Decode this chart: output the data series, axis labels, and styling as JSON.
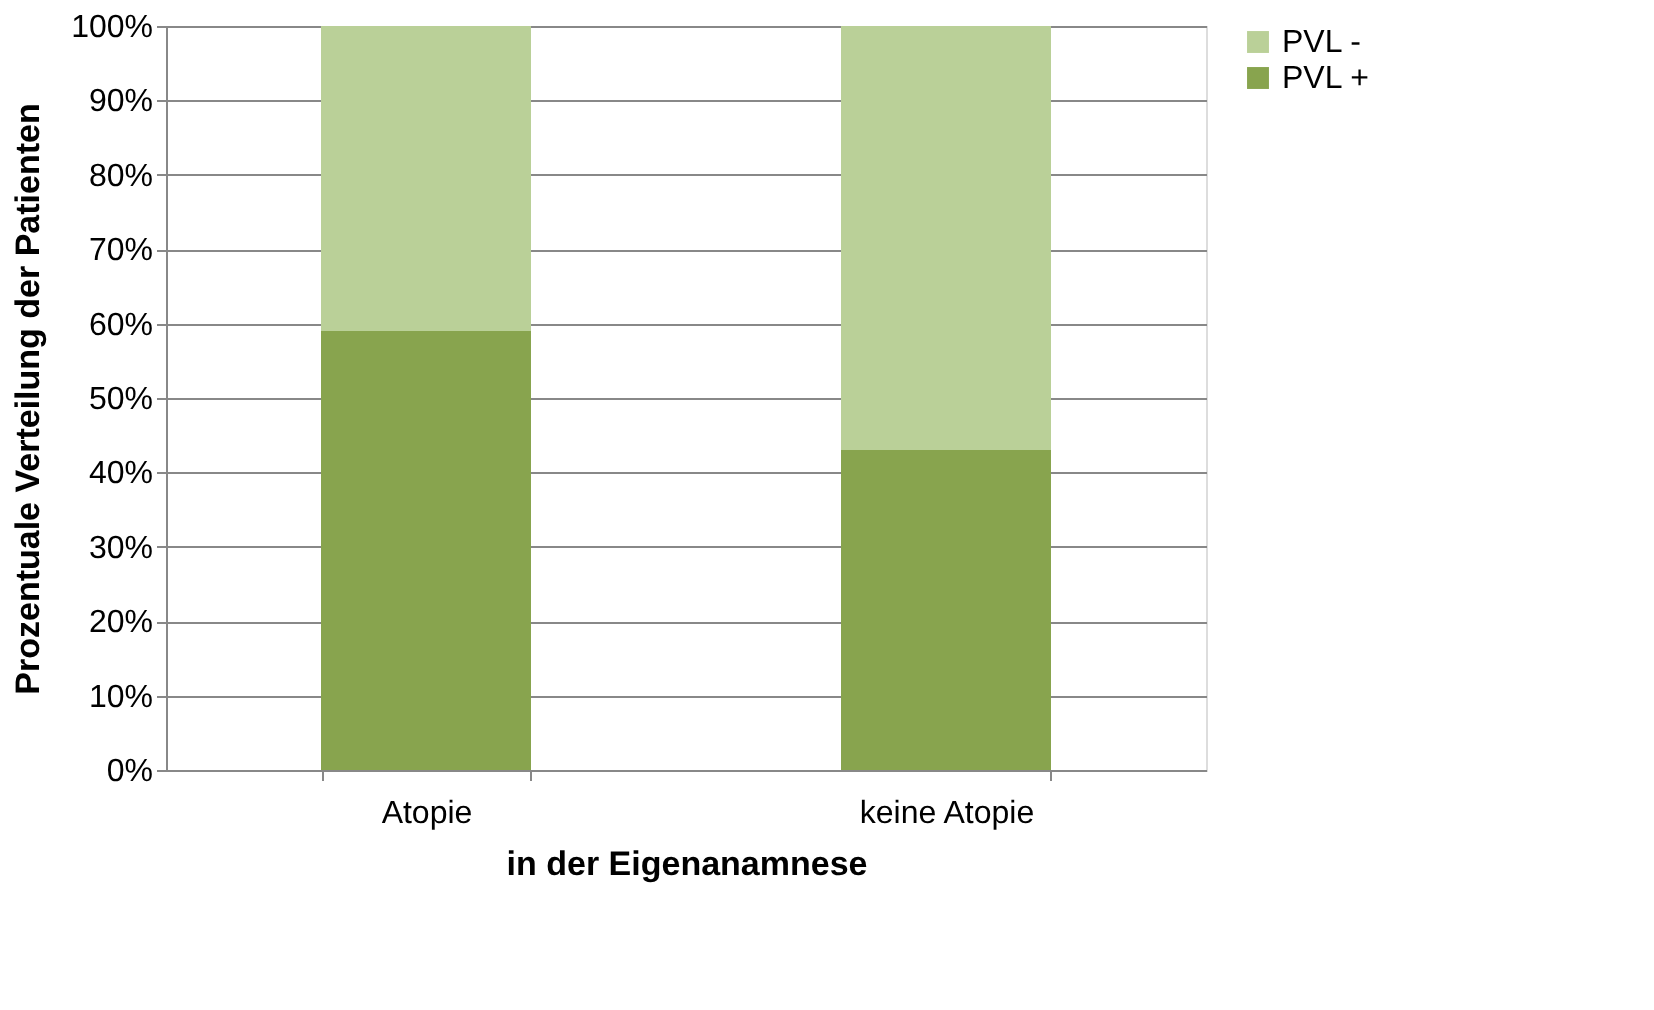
{
  "chart_data": {
    "type": "bar",
    "stacked": true,
    "xlabel": "in der Eigenanamnese",
    "ylabel": "Prozentuale Verteilung der Patienten",
    "categories": [
      "Atopie",
      "keine Atopie"
    ],
    "series": [
      {
        "name": "PVL +",
        "color": "#88a44e",
        "values": [
          59,
          43
        ]
      },
      {
        "name": "PVL -",
        "color": "#bad098",
        "values": [
          41,
          57
        ]
      }
    ],
    "ylim": [
      0,
      100
    ],
    "yticks": [
      {
        "value": 0,
        "label": "0%"
      },
      {
        "value": 10,
        "label": "10%"
      },
      {
        "value": 20,
        "label": "20%"
      },
      {
        "value": 30,
        "label": "30%"
      },
      {
        "value": 40,
        "label": "40%"
      },
      {
        "value": 50,
        "label": "50%"
      },
      {
        "value": 60,
        "label": "60%"
      },
      {
        "value": 70,
        "label": "70%"
      },
      {
        "value": 80,
        "label": "80%"
      },
      {
        "value": 90,
        "label": "90%"
      },
      {
        "value": 100,
        "label": "100%"
      }
    ],
    "grid": "y",
    "legend": "right"
  }
}
